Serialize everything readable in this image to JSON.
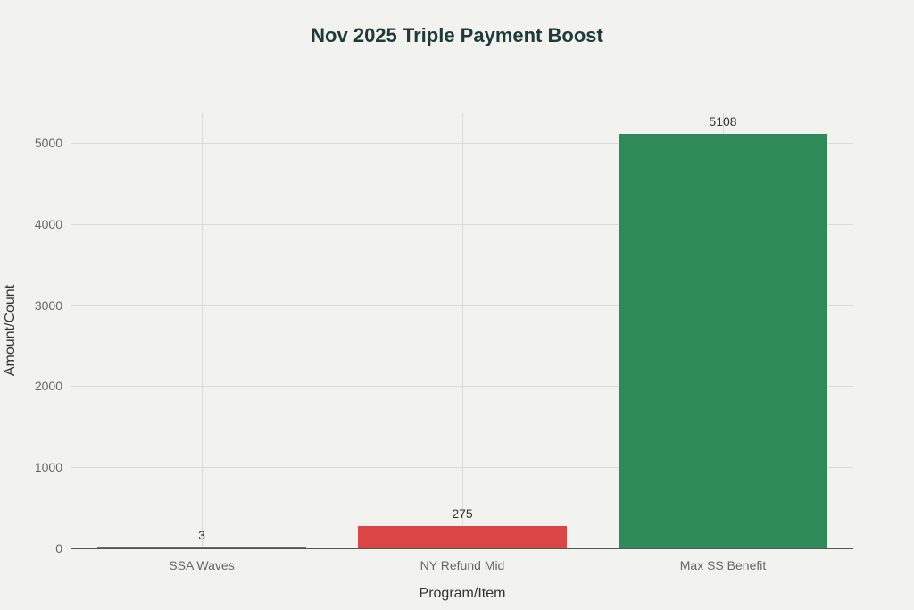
{
  "chart_data": {
    "type": "bar",
    "title": "Nov 2025 Triple Payment Boost",
    "xlabel": "Program/Item",
    "ylabel": "Amount/Count",
    "categories": [
      "SSA Waves",
      "NY Refund Mid",
      "Max SS Benefit"
    ],
    "values": [
      3,
      275,
      5108
    ],
    "data_labels": [
      "3",
      "275",
      "5108"
    ],
    "colors": [
      "#2e8b57",
      "#db4545",
      "#2e8b57"
    ],
    "yticks": [
      0,
      1000,
      2000,
      3000,
      4000,
      5000
    ],
    "ytick_labels": [
      "0",
      "1000",
      "2000",
      "3000",
      "4000",
      "5000"
    ],
    "ylim": [
      0,
      5380
    ],
    "grid": true,
    "legend": null
  }
}
